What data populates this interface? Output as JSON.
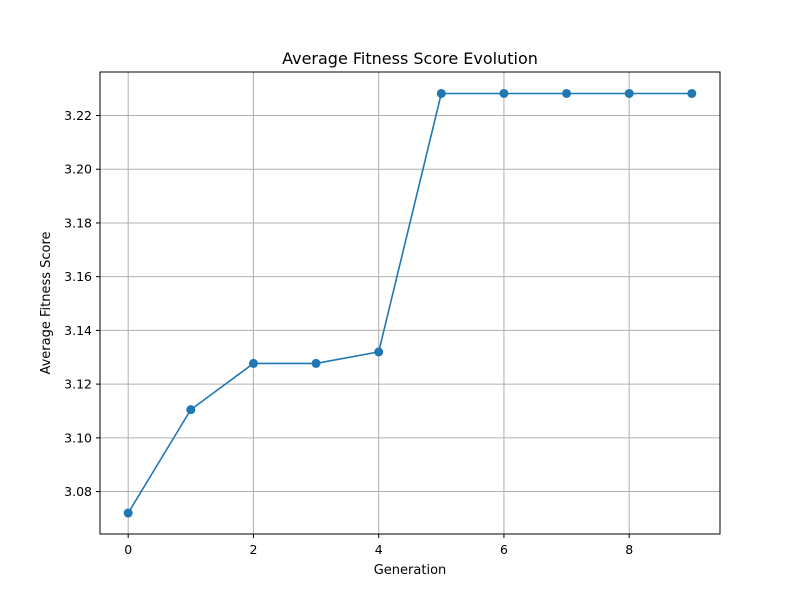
{
  "chart_data": {
    "type": "line",
    "title": "Average Fitness Score Evolution",
    "xlabel": "Generation",
    "ylabel": "Average Fitness Score",
    "x": [
      0,
      1,
      2,
      3,
      4,
      5,
      6,
      7,
      8,
      9
    ],
    "series": [
      {
        "values": [
          3.072,
          3.1105,
          3.1277,
          3.1277,
          3.132,
          3.2282,
          3.2282,
          3.2282,
          3.2282,
          3.2282
        ]
      }
    ],
    "xlim": [
      -0.45,
      9.45
    ],
    "ylim": [
      3.0642,
      3.2362
    ],
    "xticks": [
      0,
      2,
      4,
      6,
      8
    ],
    "xtick_labels": [
      "0",
      "2",
      "4",
      "6",
      "8"
    ],
    "yticks": [
      3.08,
      3.1,
      3.12,
      3.14,
      3.16,
      3.18,
      3.2,
      3.22
    ],
    "ytick_labels": [
      "3.08",
      "3.10",
      "3.12",
      "3.14",
      "3.16",
      "3.18",
      "3.20",
      "3.22"
    ],
    "grid": true,
    "line_color": "#1f77b4",
    "grid_color": "#b0b0b0",
    "marker": "circle"
  }
}
